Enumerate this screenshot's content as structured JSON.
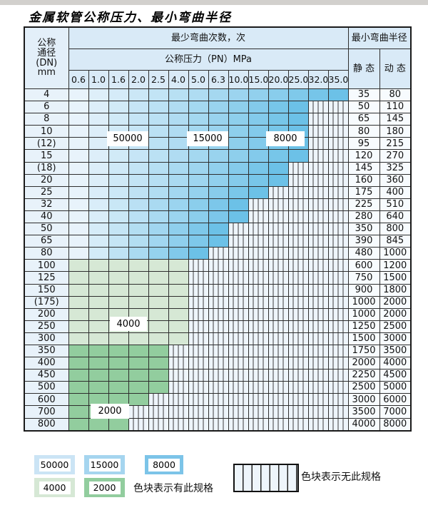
{
  "page": {
    "title": "金属软管公称压力、最小弯曲半径"
  },
  "colors": {
    "blue_light": "#e8f3fb",
    "blue_dark": "#6cc1e7",
    "green_4000": "#d6e8d5",
    "green_2000": "#92cd9e",
    "hatch_bg": "#eef5fb",
    "hatch_line": "#3c3c3c",
    "header_bg": "#d9eaf7"
  },
  "table": {
    "dn_header_lines": [
      "公称",
      "通径",
      "(DN)",
      "mm"
    ],
    "cycles_header": "最少弯曲次数，次",
    "pressure_header": "公称压力（PN）MPa",
    "pressure_columns": [
      "0.6",
      "1.0",
      "1.6",
      "2.0",
      "2.5",
      "4.0",
      "5.0",
      "6.3",
      "10.0",
      "15.0",
      "20.0",
      "25.0",
      "32.0",
      "35.0"
    ],
    "radius_header": "最小弯曲半径",
    "static_header": "静 态",
    "dynamic_header": "动 态",
    "cycle_labels": [
      "50000",
      "15000",
      "8000",
      "4000",
      "2000"
    ],
    "rows": [
      {
        "dn": "4",
        "colored_columns": 14,
        "zone": "blue",
        "static": "35",
        "dynamic": "80"
      },
      {
        "dn": "6",
        "colored_columns": 12,
        "zone": "blue",
        "static": "50",
        "dynamic": "110"
      },
      {
        "dn": "8",
        "colored_columns": 12,
        "zone": "blue",
        "static": "65",
        "dynamic": "145"
      },
      {
        "dn": "10",
        "colored_columns": 12,
        "zone": "blue",
        "static": "80",
        "dynamic": "180"
      },
      {
        "dn": "(12)",
        "colored_columns": 12,
        "zone": "blue",
        "static": "95",
        "dynamic": "215"
      },
      {
        "dn": "15",
        "colored_columns": 12,
        "zone": "blue",
        "static": "120",
        "dynamic": "270"
      },
      {
        "dn": "(18)",
        "colored_columns": 11,
        "zone": "blue",
        "static": "145",
        "dynamic": "325"
      },
      {
        "dn": "20",
        "colored_columns": 11,
        "zone": "blue",
        "static": "160",
        "dynamic": "360"
      },
      {
        "dn": "25",
        "colored_columns": 10,
        "zone": "blue",
        "static": "175",
        "dynamic": "400"
      },
      {
        "dn": "32",
        "colored_columns": 9,
        "zone": "blue",
        "static": "225",
        "dynamic": "510"
      },
      {
        "dn": "40",
        "colored_columns": 9,
        "zone": "blue",
        "static": "280",
        "dynamic": "640"
      },
      {
        "dn": "50",
        "colored_columns": 8,
        "zone": "blue",
        "static": "350",
        "dynamic": "800"
      },
      {
        "dn": "65",
        "colored_columns": 8,
        "zone": "blue",
        "static": "390",
        "dynamic": "845"
      },
      {
        "dn": "80",
        "colored_columns": 7,
        "zone": "blue",
        "static": "480",
        "dynamic": "1000"
      },
      {
        "dn": "100",
        "colored_columns": 6,
        "zone": "green_4000",
        "static": "600",
        "dynamic": "1200"
      },
      {
        "dn": "125",
        "colored_columns": 6,
        "zone": "green_4000",
        "static": "750",
        "dynamic": "1500"
      },
      {
        "dn": "150",
        "colored_columns": 6,
        "zone": "green_4000",
        "static": "900",
        "dynamic": "1800"
      },
      {
        "dn": "(175)",
        "colored_columns": 6,
        "zone": "green_4000",
        "static": "1000",
        "dynamic": "2000"
      },
      {
        "dn": "200",
        "colored_columns": 6,
        "zone": "green_4000",
        "static": "1000",
        "dynamic": "2000"
      },
      {
        "dn": "250",
        "colored_columns": 6,
        "zone": "green_4000",
        "static": "1250",
        "dynamic": "2500"
      },
      {
        "dn": "300",
        "colored_columns": 6,
        "zone": "green_4000",
        "static": "1500",
        "dynamic": "3000"
      },
      {
        "dn": "350",
        "colored_columns": 5,
        "zone": "green_2000",
        "static": "1750",
        "dynamic": "3500"
      },
      {
        "dn": "400",
        "colored_columns": 5,
        "zone": "green_2000",
        "static": "2000",
        "dynamic": "4000"
      },
      {
        "dn": "450",
        "colored_columns": 5,
        "zone": "green_2000",
        "static": "2250",
        "dynamic": "4500"
      },
      {
        "dn": "500",
        "colored_columns": 5,
        "zone": "green_2000",
        "static": "2500",
        "dynamic": "5000"
      },
      {
        "dn": "600",
        "colored_columns": 4,
        "zone": "green_2000",
        "static": "3000",
        "dynamic": "6000"
      },
      {
        "dn": "700",
        "colored_columns": 3,
        "zone": "green_2000",
        "static": "3500",
        "dynamic": "7000"
      },
      {
        "dn": "800",
        "colored_columns": 3,
        "zone": "green_2000",
        "static": "4000",
        "dynamic": "8000"
      }
    ]
  },
  "legend": {
    "swatches": [
      {
        "value": "50000",
        "color": "#cbe4f5"
      },
      {
        "value": "15000",
        "color": "#a5d5ef"
      },
      {
        "value": "8000",
        "color": "#7cc4e8"
      },
      {
        "value": "4000",
        "color": "#d6e8d5"
      },
      {
        "value": "2000",
        "color": "#92cd9e"
      }
    ],
    "has_spec_text": "色块表示有此规格",
    "no_spec_text": "色块表示无此规格"
  }
}
